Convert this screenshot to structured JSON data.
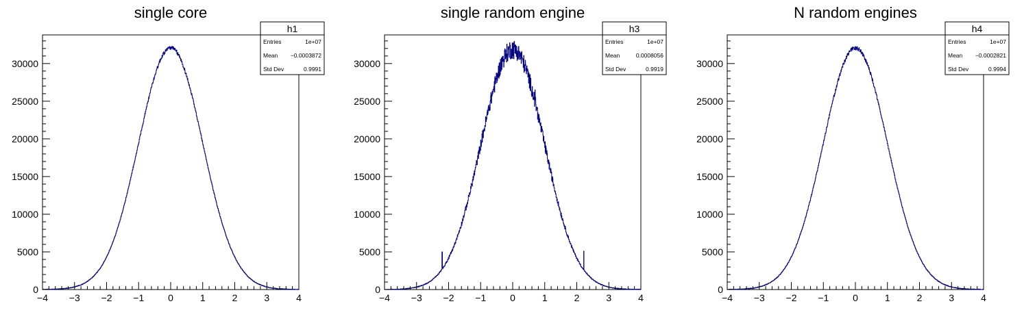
{
  "chart_data": [
    {
      "type": "histogram",
      "title": "single core",
      "xlim": [
        -4,
        4
      ],
      "ylim": [
        0,
        33800
      ],
      "x_ticks": [
        "−4",
        "−3",
        "−2",
        "−1",
        "0",
        "1",
        "2",
        "3",
        "4"
      ],
      "y_ticks": [
        "0",
        "5000",
        "10000",
        "15000",
        "20000",
        "25000",
        "30000"
      ],
      "stats": {
        "name": "h1",
        "entries_label": "Entries",
        "entries": "1e+07",
        "mean_label": "Mean",
        "mean": "−0.0003872",
        "std_label": "Std Dev",
        "std": "0.9991"
      },
      "peak": 32100,
      "mean_value": -0.0003872,
      "sigma": 0.9991,
      "noise": 0.004,
      "spikes": [],
      "color": "#000080"
    },
    {
      "type": "histogram",
      "title": "single random engine",
      "xlim": [
        -4,
        4
      ],
      "ylim": [
        0,
        33800
      ],
      "x_ticks": [
        "−4",
        "−3",
        "−2",
        "−1",
        "0",
        "1",
        "2",
        "3",
        "4"
      ],
      "y_ticks": [
        "0",
        "5000",
        "10000",
        "15000",
        "20000",
        "25000",
        "30000"
      ],
      "stats": {
        "name": "h3",
        "entries_label": "Entries",
        "entries": "1e+07",
        "mean_label": "Mean",
        "mean": "0.0008056",
        "std_label": "Std Dev",
        "std": "0.9919"
      },
      "peak": 31900,
      "mean_value": 0.0008056,
      "sigma": 0.9919,
      "noise": 0.02,
      "spikes": [
        {
          "x": -2.2,
          "y": 5000
        },
        {
          "x": 2.22,
          "y": 5100
        },
        {
          "x": 0.7,
          "y": 26500
        }
      ],
      "color": "#000080"
    },
    {
      "type": "histogram",
      "title": "N random engines",
      "xlim": [
        -4,
        4
      ],
      "ylim": [
        0,
        33800
      ],
      "x_ticks": [
        "−4",
        "−3",
        "−2",
        "−1",
        "0",
        "1",
        "2",
        "3",
        "4"
      ],
      "y_ticks": [
        "0",
        "5000",
        "10000",
        "15000",
        "20000",
        "25000",
        "30000"
      ],
      "stats": {
        "name": "h4",
        "entries_label": "Entries",
        "entries": "1e+07",
        "mean_label": "Mean",
        "mean": "−0.0002821",
        "std_label": "Std Dev",
        "std": "0.9994"
      },
      "peak": 32050,
      "mean_value": -0.0002821,
      "sigma": 0.9994,
      "noise": 0.004,
      "spikes": [],
      "color": "#000080"
    }
  ]
}
